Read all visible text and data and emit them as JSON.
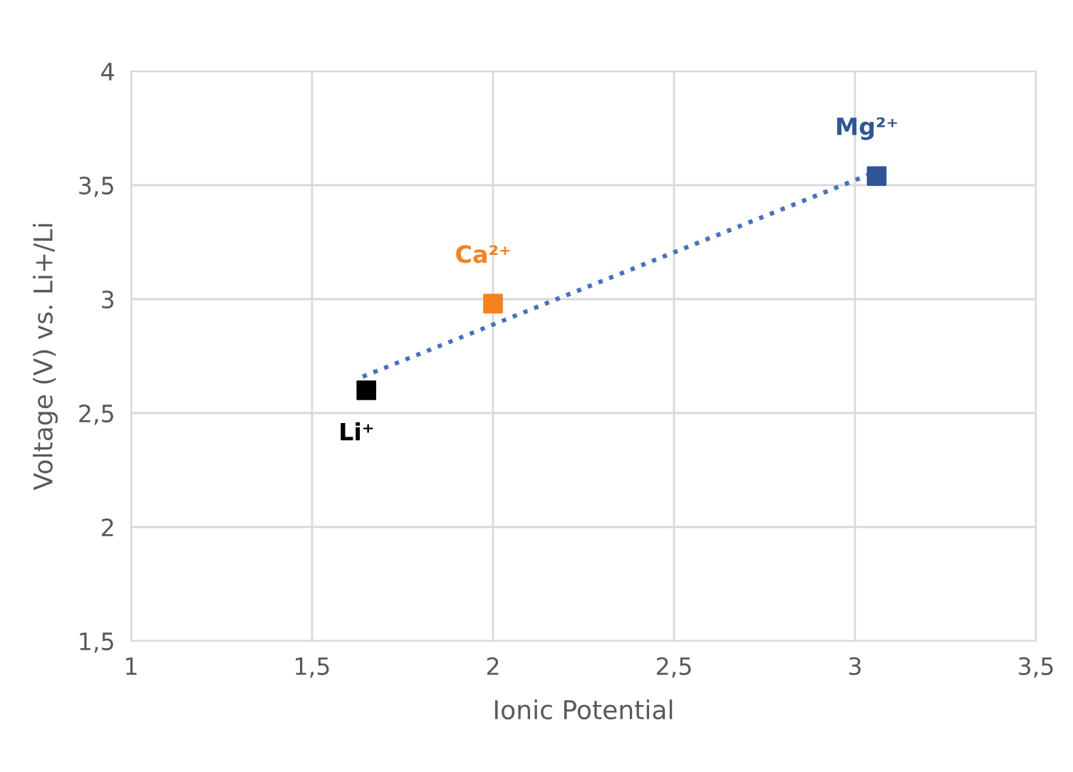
{
  "chart_data": {
    "type": "scatter",
    "xlabel": "Ionic Potential",
    "ylabel": "Voltage (V) vs. Li+/Li",
    "series": [
      {
        "x": [
          1.65,
          2.0,
          3.06
        ],
        "values": [
          2.6,
          2.98,
          3.54
        ],
        "colors": [
          "#000000",
          "#f5821f",
          "#2f5597"
        ],
        "marker": "square"
      },
      {
        "type": "line",
        "x": [
          1.64,
          3.06
        ],
        "values": [
          2.66,
          3.56
        ],
        "color": "#4472c4",
        "line_style": "dotted",
        "marker": "none"
      }
    ],
    "annotations": [
      {
        "text": "Li⁺",
        "x": 1.65,
        "y": 2.6
      },
      {
        "text": "Ca²⁺",
        "x": 2.0,
        "y": 2.98
      },
      {
        "text": "Mg²⁺",
        "x": 3.06,
        "y": 3.54
      }
    ],
    "xlim": [
      1,
      3.5
    ],
    "xticks": [
      1,
      {
        "value": 1.5,
        "label": "1,5"
      },
      2,
      {
        "value": 2.5,
        "label": "2,5"
      },
      3,
      {
        "value": 3.5,
        "label": "3,5"
      }
    ],
    "ylim": [
      1.5,
      4
    ],
    "yticks": [
      {
        "value": 1.5,
        "label": "1,5"
      },
      2,
      {
        "value": 2.5,
        "label": "2,5"
      },
      3,
      {
        "value": 3.5,
        "label": "3,5"
      },
      4
    ],
    "grid": true
  }
}
